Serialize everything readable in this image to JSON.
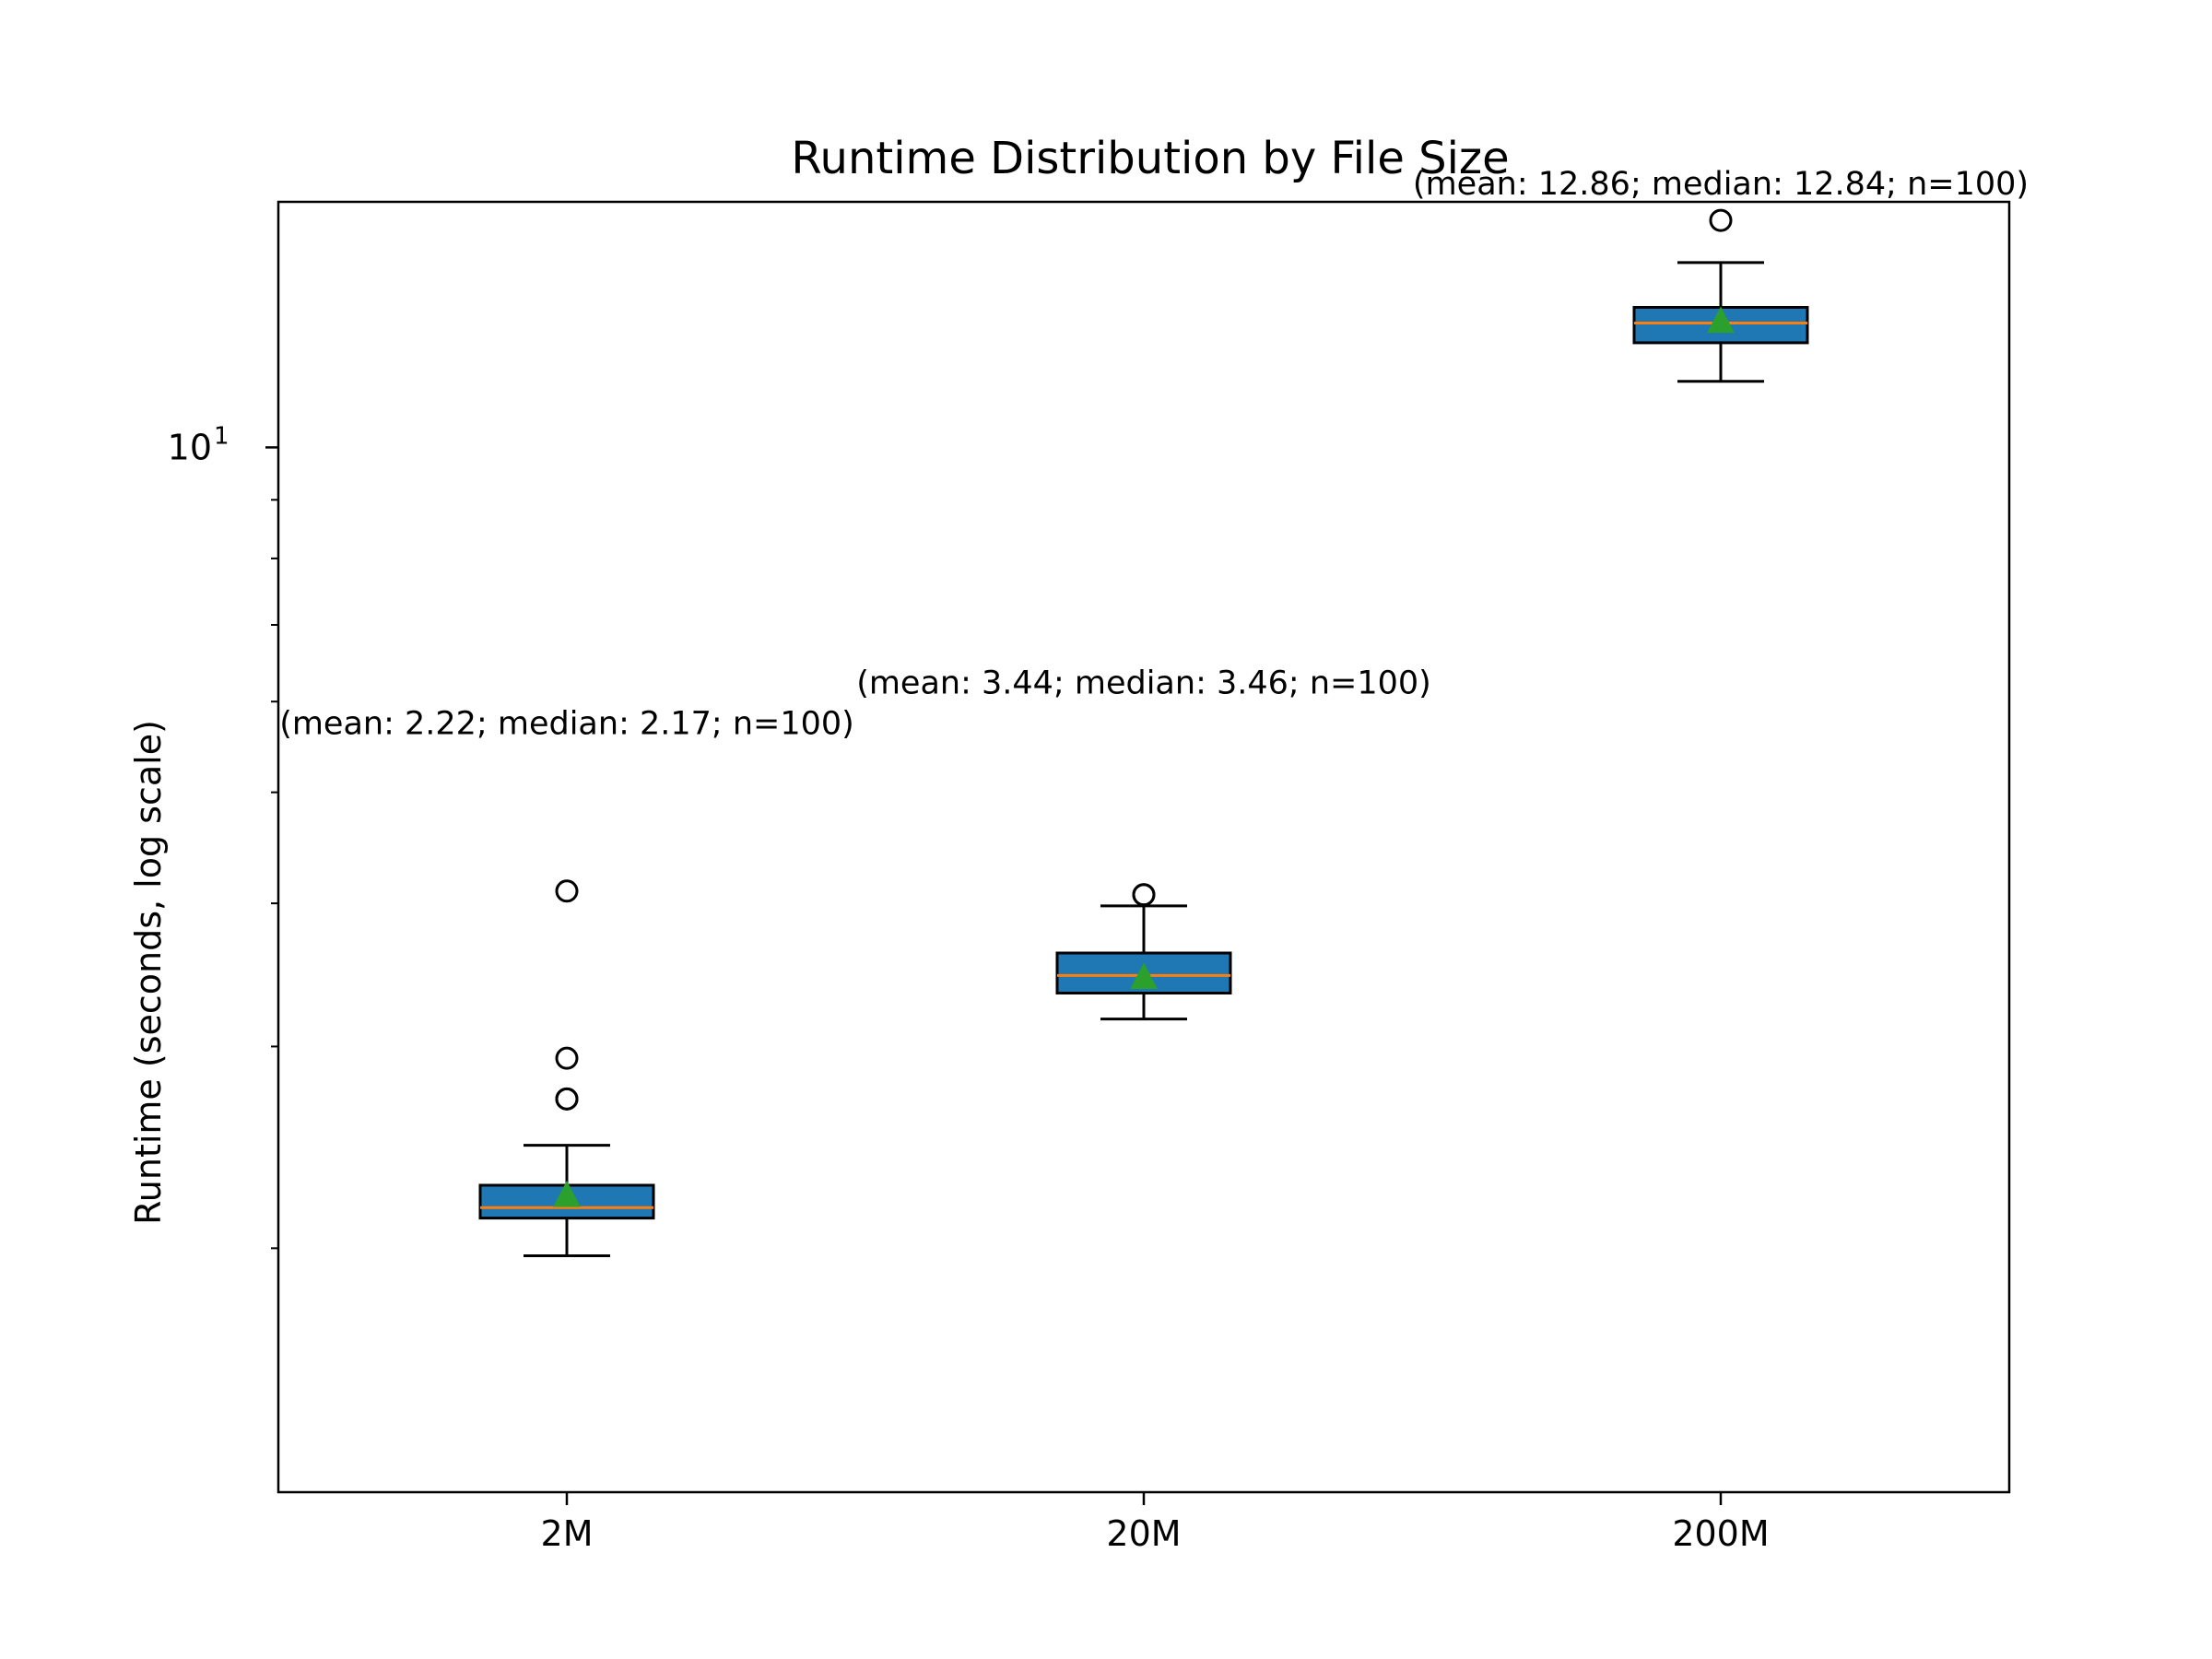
{
  "chart_data": {
    "type": "box",
    "title": "Runtime Distribution by File Size",
    "xlabel": "",
    "ylabel": "Runtime (seconds, log scale)",
    "yscale": "log",
    "ylim": [
      1.225,
      16.38
    ],
    "y_tick_major": {
      "value": 10,
      "base": "10",
      "exponent": "1"
    },
    "y_tick_minor": [
      2,
      3,
      4,
      5,
      6,
      7,
      8,
      9
    ],
    "categories": [
      "2M",
      "20M",
      "200M"
    ],
    "series": [
      {
        "category": "2M",
        "whisker_low": 1.97,
        "q1": 2.125,
        "median": 2.17,
        "q3": 2.27,
        "whisker_high": 2.46,
        "mean": 2.22,
        "fliers": [
          2.7,
          2.7,
          2.93,
          4.1
        ],
        "annotation": "(mean: 2.22; median: 2.17; n=100)"
      },
      {
        "category": "20M",
        "whisker_low": 3.17,
        "q1": 3.34,
        "median": 3.46,
        "q3": 3.62,
        "whisker_high": 3.98,
        "mean": 3.44,
        "fliers": [
          4.07,
          4.07
        ],
        "annotation": "(mean: 3.44; median: 3.46; n=100)"
      },
      {
        "category": "200M",
        "whisker_low": 11.42,
        "q1": 12.34,
        "median": 12.84,
        "q3": 13.25,
        "whisker_high": 14.5,
        "mean": 12.86,
        "fliers": [
          15.78
        ],
        "annotation": "(mean: 12.86; median: 12.84; n=100)"
      }
    ],
    "annotation_y": [
      5.62,
      6.1,
      16.62
    ],
    "colors": {
      "box_fill": "#1f77b4",
      "median": "#ff7f0e",
      "mean_marker": "#2ca02c",
      "edge": "#000000"
    },
    "grid": false,
    "legend": "none"
  }
}
